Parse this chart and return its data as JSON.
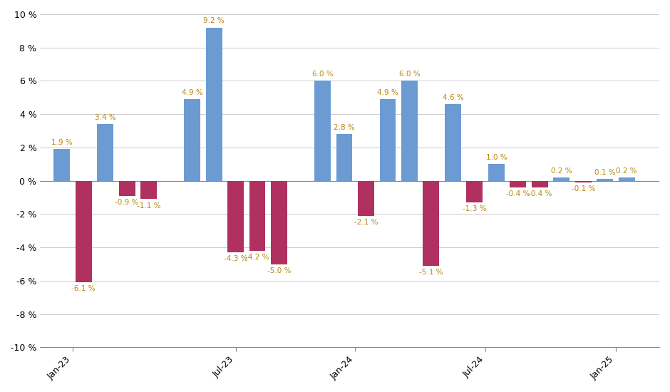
{
  "bars": [
    {
      "x": 0,
      "val": 1.9,
      "color": "blue"
    },
    {
      "x": 1,
      "val": -6.1,
      "color": "red"
    },
    {
      "x": 2,
      "val": 3.4,
      "color": "blue"
    },
    {
      "x": 3,
      "val": -0.9,
      "color": "red"
    },
    {
      "x": 4,
      "val": -1.1,
      "color": "red"
    },
    {
      "x": 6,
      "val": 4.9,
      "color": "blue"
    },
    {
      "x": 7,
      "val": 9.2,
      "color": "blue"
    },
    {
      "x": 8,
      "val": -4.3,
      "color": "red"
    },
    {
      "x": 9,
      "val": -4.2,
      "color": "red"
    },
    {
      "x": 10,
      "val": -5.0,
      "color": "red"
    },
    {
      "x": 12,
      "val": 6.0,
      "color": "blue"
    },
    {
      "x": 13,
      "val": 2.8,
      "color": "blue"
    },
    {
      "x": 14,
      "val": -2.1,
      "color": "red"
    },
    {
      "x": 15,
      "val": 4.9,
      "color": "blue"
    },
    {
      "x": 16,
      "val": 6.0,
      "color": "blue"
    },
    {
      "x": 17,
      "val": -5.1,
      "color": "red"
    },
    {
      "x": 18,
      "val": 4.6,
      "color": "blue"
    },
    {
      "x": 19,
      "val": -1.3,
      "color": "red"
    },
    {
      "x": 20,
      "val": 1.0,
      "color": "blue"
    },
    {
      "x": 21,
      "val": -0.4,
      "color": "red"
    },
    {
      "x": 22,
      "val": -0.4,
      "color": "red"
    },
    {
      "x": 23,
      "val": 0.2,
      "color": "blue"
    },
    {
      "x": 24,
      "val": -0.1,
      "color": "red"
    },
    {
      "x": 25,
      "val": 0.1,
      "color": "blue"
    },
    {
      "x": 26,
      "val": 0.2,
      "color": "blue"
    }
  ],
  "xtick_positions": [
    0.5,
    8.0,
    13.5,
    19.5,
    25.5
  ],
  "xtick_labels": [
    "Jan-23",
    "Jul-23",
    "Jan-24",
    "Jul-24",
    "Jan-25"
  ],
  "blue_color": "#6B9BD2",
  "blue_color_dark": "#4A7AB5",
  "red_color": "#B03060",
  "red_color_dark": "#8B1040",
  "label_color": "#B8860B",
  "bg_color": "#FFFFFF",
  "grid_color": "#CCCCCC",
  "ylim": [
    -10,
    10
  ],
  "yticks": [
    -10,
    -8,
    -6,
    -4,
    -2,
    0,
    2,
    4,
    6,
    8,
    10
  ],
  "bar_width": 0.75
}
